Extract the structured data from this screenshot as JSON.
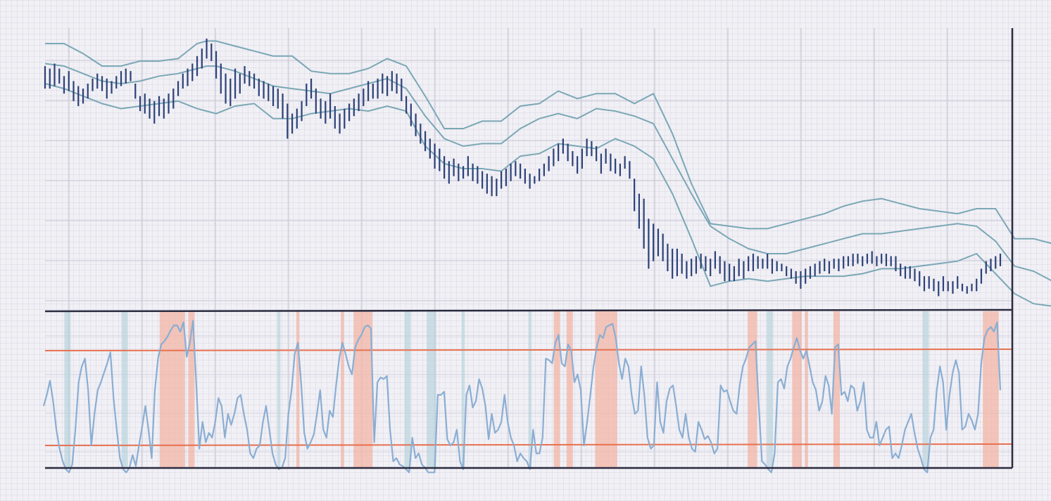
{
  "chart_data": {
    "type": "ohlc",
    "title": "",
    "xlabel": "",
    "ylabel": "",
    "grid": true,
    "colors": {
      "bars": "#2c4178",
      "bands": "#7aa7b5",
      "oscillator": "#8aaed3",
      "threshold": "#e8714f",
      "overbought_shade": "#f2b6a6",
      "oversold_shade": "#b2d1d8"
    },
    "price": {
      "ylim": [
        0,
        100
      ],
      "bars": [
        {
          "hi": 91,
          "lo": 82
        },
        {
          "hi": 90,
          "lo": 82
        },
        {
          "hi": 92,
          "lo": 83
        },
        {
          "hi": 90,
          "lo": 84
        },
        {
          "hi": 87,
          "lo": 80
        },
        {
          "hi": 89,
          "lo": 81
        },
        {
          "hi": 85,
          "lo": 77
        },
        {
          "hi": 83,
          "lo": 75
        },
        {
          "hi": 82,
          "lo": 76
        },
        {
          "hi": 84,
          "lo": 78
        },
        {
          "hi": 86,
          "lo": 81
        },
        {
          "hi": 88,
          "lo": 82
        },
        {
          "hi": 87,
          "lo": 81
        },
        {
          "hi": 86,
          "lo": 78
        },
        {
          "hi": 85,
          "lo": 80
        },
        {
          "hi": 87,
          "lo": 82
        },
        {
          "hi": 89,
          "lo": 83
        },
        {
          "hi": 90,
          "lo": 84
        },
        {
          "hi": 89,
          "lo": 85
        },
        {
          "hi": 84,
          "lo": 78
        },
        {
          "hi": 79,
          "lo": 73
        },
        {
          "hi": 80,
          "lo": 72
        },
        {
          "hi": 78,
          "lo": 70
        },
        {
          "hi": 77,
          "lo": 68
        },
        {
          "hi": 79,
          "lo": 71
        },
        {
          "hi": 78,
          "lo": 70
        },
        {
          "hi": 80,
          "lo": 72
        },
        {
          "hi": 82,
          "lo": 74
        },
        {
          "hi": 85,
          "lo": 79
        },
        {
          "hi": 88,
          "lo": 82
        },
        {
          "hi": 90,
          "lo": 83
        },
        {
          "hi": 92,
          "lo": 85
        },
        {
          "hi": 95,
          "lo": 87
        },
        {
          "hi": 98,
          "lo": 90
        },
        {
          "hi": 102,
          "lo": 94
        },
        {
          "hi": 100,
          "lo": 93
        },
        {
          "hi": 97,
          "lo": 86
        },
        {
          "hi": 92,
          "lo": 80
        },
        {
          "hi": 88,
          "lo": 76
        },
        {
          "hi": 86,
          "lo": 75
        },
        {
          "hi": 90,
          "lo": 78
        },
        {
          "hi": 88,
          "lo": 80
        },
        {
          "hi": 91,
          "lo": 84
        },
        {
          "hi": 89,
          "lo": 83
        },
        {
          "hi": 88,
          "lo": 82
        },
        {
          "hi": 86,
          "lo": 79
        },
        {
          "hi": 85,
          "lo": 78
        },
        {
          "hi": 84,
          "lo": 77
        },
        {
          "hi": 83,
          "lo": 75
        },
        {
          "hi": 82,
          "lo": 74
        },
        {
          "hi": 80,
          "lo": 70
        },
        {
          "hi": 76,
          "lo": 62
        },
        {
          "hi": 72,
          "lo": 64
        },
        {
          "hi": 74,
          "lo": 66
        },
        {
          "hi": 77,
          "lo": 69
        },
        {
          "hi": 84,
          "lo": 75
        },
        {
          "hi": 86,
          "lo": 78
        },
        {
          "hi": 82,
          "lo": 72
        },
        {
          "hi": 78,
          "lo": 70
        },
        {
          "hi": 77,
          "lo": 68
        },
        {
          "hi": 80,
          "lo": 70
        },
        {
          "hi": 75,
          "lo": 66
        },
        {
          "hi": 72,
          "lo": 64
        },
        {
          "hi": 74,
          "lo": 66
        },
        {
          "hi": 76,
          "lo": 69
        },
        {
          "hi": 78,
          "lo": 71
        },
        {
          "hi": 80,
          "lo": 73
        },
        {
          "hi": 82,
          "lo": 75
        },
        {
          "hi": 85,
          "lo": 77
        },
        {
          "hi": 84,
          "lo": 78
        },
        {
          "hi": 86,
          "lo": 78
        },
        {
          "hi": 88,
          "lo": 80
        },
        {
          "hi": 87,
          "lo": 79
        },
        {
          "hi": 89,
          "lo": 81
        },
        {
          "hi": 88,
          "lo": 80
        },
        {
          "hi": 86,
          "lo": 77
        },
        {
          "hi": 79,
          "lo": 72
        },
        {
          "hi": 76,
          "lo": 67
        },
        {
          "hi": 72,
          "lo": 63
        },
        {
          "hi": 68,
          "lo": 60
        },
        {
          "hi": 65,
          "lo": 57
        },
        {
          "hi": 62,
          "lo": 54
        },
        {
          "hi": 60,
          "lo": 50
        },
        {
          "hi": 58,
          "lo": 49
        },
        {
          "hi": 55,
          "lo": 46
        },
        {
          "hi": 53,
          "lo": 44
        },
        {
          "hi": 54,
          "lo": 47
        },
        {
          "hi": 52,
          "lo": 45
        },
        {
          "hi": 51,
          "lo": 46
        },
        {
          "hi": 55,
          "lo": 47
        },
        {
          "hi": 52,
          "lo": 45
        },
        {
          "hi": 51,
          "lo": 44
        },
        {
          "hi": 49,
          "lo": 42
        },
        {
          "hi": 48,
          "lo": 40
        },
        {
          "hi": 47,
          "lo": 39
        },
        {
          "hi": 46,
          "lo": 39
        },
        {
          "hi": 49,
          "lo": 42
        },
        {
          "hi": 50,
          "lo": 43
        },
        {
          "hi": 52,
          "lo": 45
        },
        {
          "hi": 53,
          "lo": 47
        },
        {
          "hi": 52,
          "lo": 46
        },
        {
          "hi": 50,
          "lo": 44
        },
        {
          "hi": 48,
          "lo": 42
        },
        {
          "hi": 47,
          "lo": 44
        },
        {
          "hi": 50,
          "lo": 45
        },
        {
          "hi": 52,
          "lo": 47
        },
        {
          "hi": 55,
          "lo": 49
        },
        {
          "hi": 58,
          "lo": 51
        },
        {
          "hi": 60,
          "lo": 53
        },
        {
          "hi": 62,
          "lo": 56
        },
        {
          "hi": 60,
          "lo": 53
        },
        {
          "hi": 57,
          "lo": 51
        },
        {
          "hi": 55,
          "lo": 48
        },
        {
          "hi": 58,
          "lo": 50
        },
        {
          "hi": 62,
          "lo": 55
        },
        {
          "hi": 61,
          "lo": 55
        },
        {
          "hi": 59,
          "lo": 53
        },
        {
          "hi": 56,
          "lo": 48
        },
        {
          "hi": 58,
          "lo": 52
        },
        {
          "hi": 56,
          "lo": 49
        },
        {
          "hi": 54,
          "lo": 48
        },
        {
          "hi": 52,
          "lo": 47
        },
        {
          "hi": 55,
          "lo": 50
        },
        {
          "hi": 53,
          "lo": 46
        },
        {
          "hi": 46,
          "lo": 33
        },
        {
          "hi": 40,
          "lo": 26
        },
        {
          "hi": 38,
          "lo": 18
        },
        {
          "hi": 30,
          "lo": 10
        },
        {
          "hi": 28,
          "lo": 13
        },
        {
          "hi": 26,
          "lo": 15
        },
        {
          "hi": 24,
          "lo": 13
        },
        {
          "hi": 20,
          "lo": 9
        },
        {
          "hi": 18,
          "lo": 6
        },
        {
          "hi": 18,
          "lo": 7
        },
        {
          "hi": 16,
          "lo": 8
        },
        {
          "hi": 13,
          "lo": 6
        },
        {
          "hi": 14,
          "lo": 7
        },
        {
          "hi": 15,
          "lo": 8
        },
        {
          "hi": 16,
          "lo": 10
        },
        {
          "hi": 15,
          "lo": 9
        },
        {
          "hi": 14,
          "lo": 7
        },
        {
          "hi": 17,
          "lo": 10
        },
        {
          "hi": 15,
          "lo": 8
        },
        {
          "hi": 13,
          "lo": 5
        },
        {
          "hi": 12,
          "lo": 5
        },
        {
          "hi": 11,
          "lo": 5
        },
        {
          "hi": 14,
          "lo": 7
        },
        {
          "hi": 13,
          "lo": 6
        },
        {
          "hi": 15,
          "lo": 9
        },
        {
          "hi": 16,
          "lo": 9
        },
        {
          "hi": 15,
          "lo": 10
        },
        {
          "hi": 14,
          "lo": 10
        },
        {
          "hi": 16,
          "lo": 10
        },
        {
          "hi": 14,
          "lo": 8
        },
        {
          "hi": 13,
          "lo": 9
        },
        {
          "hi": 12,
          "lo": 9
        },
        {
          "hi": 11,
          "lo": 7
        },
        {
          "hi": 10,
          "lo": 6
        },
        {
          "hi": 9,
          "lo": 4
        },
        {
          "hi": 9,
          "lo": 2
        },
        {
          "hi": 10,
          "lo": 4
        },
        {
          "hi": 11,
          "lo": 6
        },
        {
          "hi": 12,
          "lo": 7
        },
        {
          "hi": 13,
          "lo": 8
        },
        {
          "hi": 14,
          "lo": 9
        },
        {
          "hi": 13,
          "lo": 8
        },
        {
          "hi": 14,
          "lo": 10
        },
        {
          "hi": 14,
          "lo": 9
        },
        {
          "hi": 15,
          "lo": 10
        },
        {
          "hi": 15,
          "lo": 11
        },
        {
          "hi": 16,
          "lo": 11
        },
        {
          "hi": 16,
          "lo": 12
        },
        {
          "hi": 15,
          "lo": 11
        },
        {
          "hi": 16,
          "lo": 12
        },
        {
          "hi": 17,
          "lo": 12
        },
        {
          "hi": 15,
          "lo": 11
        },
        {
          "hi": 16,
          "lo": 12
        },
        {
          "hi": 16,
          "lo": 11
        },
        {
          "hi": 15,
          "lo": 11
        },
        {
          "hi": 15,
          "lo": 9
        },
        {
          "hi": 12,
          "lo": 7
        },
        {
          "hi": 11,
          "lo": 6
        },
        {
          "hi": 11,
          "lo": 6
        },
        {
          "hi": 10,
          "lo": 5
        },
        {
          "hi": 9,
          "lo": 3
        },
        {
          "hi": 7,
          "lo": 1
        },
        {
          "hi": 7,
          "lo": 2
        },
        {
          "hi": 6,
          "lo": 1
        },
        {
          "hi": 5,
          "lo": -1
        },
        {
          "hi": 7,
          "lo": 1
        },
        {
          "hi": 5,
          "lo": 1
        },
        {
          "hi": 5,
          "lo": 0
        },
        {
          "hi": 7,
          "lo": 2
        },
        {
          "hi": 4,
          "lo": 1
        },
        {
          "hi": 3,
          "lo": 0
        },
        {
          "hi": 4,
          "lo": 1
        },
        {
          "hi": 6,
          "lo": 1
        },
        {
          "hi": 10,
          "lo": 4
        },
        {
          "hi": 13,
          "lo": 8
        },
        {
          "hi": 14,
          "lo": 9
        },
        {
          "hi": 15,
          "lo": 10
        },
        {
          "hi": 16,
          "lo": 11
        }
      ],
      "bands": {
        "x": [
          0,
          4,
          8,
          12,
          16,
          20,
          24,
          28,
          32,
          34,
          36,
          40,
          44,
          48,
          52,
          56,
          60,
          64,
          68,
          72,
          76,
          80,
          84,
          88,
          92,
          96,
          100,
          104,
          108,
          112,
          116,
          120,
          124,
          128,
          132,
          136,
          140,
          144,
          148,
          152,
          156,
          160,
          164,
          168,
          172,
          176,
          180,
          184,
          188,
          192,
          196,
          200,
          204,
          208,
          212,
          216,
          219
        ],
        "upper": [
          100,
          100,
          96,
          91,
          91,
          93,
          93,
          94,
          100,
          101,
          101,
          99,
          97,
          95,
          95,
          89,
          88,
          88,
          90,
          94,
          91,
          79,
          66,
          66,
          69,
          69,
          75,
          76,
          81,
          78,
          80,
          80,
          76,
          80,
          64,
          44,
          28,
          27,
          26,
          26,
          28,
          30,
          32,
          35,
          37,
          38,
          36,
          34,
          33,
          32,
          34,
          34,
          22,
          22,
          20,
          20,
          20
        ],
        "middle": [
          92,
          91,
          88,
          85,
          84,
          85,
          87,
          88,
          90,
          91,
          91,
          89,
          86,
          83,
          82,
          81,
          80,
          82,
          84,
          86,
          82,
          71,
          62,
          59,
          60,
          60,
          66,
          70,
          72,
          70,
          74,
          73,
          71,
          68,
          54,
          40,
          27,
          22,
          18,
          16,
          16,
          18,
          20,
          22,
          24,
          24,
          25,
          26,
          27,
          28,
          27,
          21,
          11,
          9,
          5,
          5,
          7
        ],
        "lower": [
          84,
          82,
          79,
          76,
          74,
          75,
          76,
          77,
          74,
          73,
          72,
          75,
          76,
          70,
          70,
          72,
          73,
          74,
          73,
          75,
          73,
          59,
          52,
          50,
          50,
          49,
          55,
          56,
          60,
          59,
          58,
          62,
          59,
          54,
          40,
          22,
          3,
          5,
          6,
          5,
          6,
          7,
          7,
          7,
          8,
          10,
          10,
          11,
          12,
          13,
          16,
          8,
          0,
          -4,
          -5,
          -5,
          -7
        ]
      }
    },
    "oscillator": {
      "ylim": [
        0,
        100
      ],
      "upper_threshold": 80,
      "lower_threshold": 20,
      "values": [
        45,
        52,
        61,
        48,
        30,
        18,
        10,
        5,
        3,
        8,
        30,
        60,
        70,
        75,
        55,
        20,
        40,
        55,
        60,
        66,
        72,
        79,
        50,
        30,
        12,
        5,
        3,
        6,
        14,
        7,
        20,
        32,
        45,
        30,
        12,
        55,
        75,
        84,
        86,
        89,
        93,
        96,
        96,
        92,
        98,
        76,
        85,
        99,
        60,
        18,
        35,
        22,
        28,
        25,
        35,
        50,
        45,
        25,
        40,
        33,
        40,
        50,
        52,
        40,
        30,
        15,
        12,
        18,
        20,
        35,
        45,
        30,
        15,
        8,
        5,
        6,
        12,
        40,
        55,
        78,
        85,
        60,
        28,
        18,
        22,
        27,
        40,
        55,
        30,
        25,
        42,
        38,
        58,
        75,
        85,
        78,
        70,
        65,
        82,
        87,
        90,
        95,
        96,
        94,
        22,
        60,
        63,
        62,
        64,
        30,
        10,
        12,
        8,
        7,
        5,
        3,
        25,
        12,
        15,
        8,
        6,
        3,
        3,
        3,
        52,
        52,
        54,
        24,
        20,
        22,
        30,
        10,
        5,
        52,
        58,
        44,
        48,
        62,
        56,
        45,
        24,
        40,
        28,
        30,
        35,
        52,
        35,
        25,
        20,
        10,
        15,
        12,
        10,
        5,
        30,
        15,
        15,
        25,
        75,
        74,
        72,
        85,
        90,
        72,
        70,
        84,
        80,
        60,
        65,
        55,
        20,
        35,
        52,
        70,
        82,
        90,
        88,
        95,
        96,
        97,
        88,
        72,
        62,
        75,
        70,
        52,
        40,
        42,
        70,
        52,
        25,
        18,
        20,
        60,
        35,
        28,
        48,
        56,
        58,
        45,
        30,
        25,
        40,
        25,
        18,
        16,
        35,
        30,
        24,
        26,
        22,
        15,
        18,
        58,
        54,
        55,
        48,
        42,
        40,
        58,
        70,
        75,
        82,
        84,
        86,
        45,
        10,
        8,
        5,
        3,
        15,
        60,
        62,
        56,
        70,
        75,
        82,
        88,
        80,
        75,
        80,
        70,
        60,
        55,
        42,
        48,
        64,
        58,
        40,
        82,
        84,
        52,
        54,
        48,
        58,
        56,
        42,
        48,
        60,
        30,
        25,
        25,
        35,
        20,
        25,
        30,
        32,
        12,
        15,
        12,
        20,
        30,
        35,
        40,
        28,
        18,
        12,
        5,
        3,
        25,
        30,
        55,
        70,
        60,
        30,
        52,
        66,
        74,
        66,
        30,
        32,
        40,
        36,
        30,
        40,
        72,
        88,
        93,
        95,
        92,
        98,
        55
      ]
    }
  }
}
